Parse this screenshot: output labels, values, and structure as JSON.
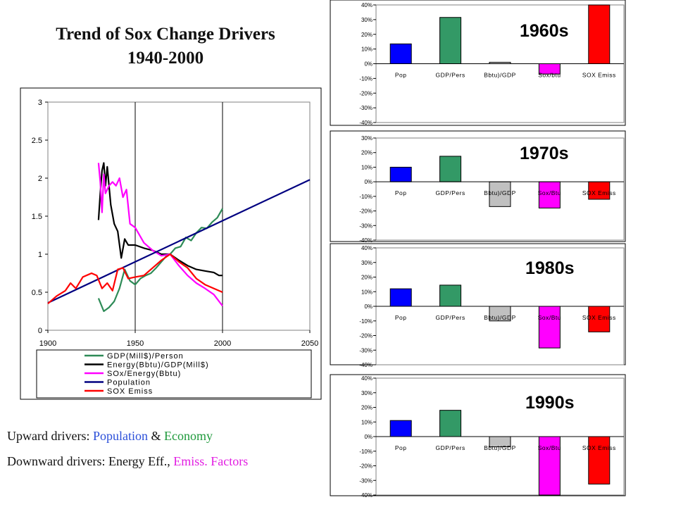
{
  "page": {
    "title_line1": "Trend of Sox Change Drivers",
    "title_line2": "1940-2000",
    "note1": {
      "prefix": "Upward drivers: ",
      "a": "Population",
      "mid": " & ",
      "b": "Economy"
    },
    "note2": {
      "prefix": "Downward drivers: Energy Eff., ",
      "a": "Emiss. Factors"
    }
  },
  "chart_data": [
    {
      "type": "line",
      "xlim": [
        1900,
        2050
      ],
      "ylim": [
        0,
        3
      ],
      "xticks": [
        "1900",
        "1950",
        "2000",
        "2050"
      ],
      "yticks": [
        "0",
        "0.5",
        "1",
        "1.5",
        "2",
        "2.5",
        "3"
      ],
      "vlines": [
        1950,
        2000
      ],
      "legend_position": "bottom",
      "series": [
        {
          "name": "GDP(Mill$)/Person",
          "color": "#2e8b57",
          "x": [
            1929,
            1932,
            1935,
            1938,
            1941,
            1944,
            1947,
            1950,
            1953,
            1956,
            1959,
            1962,
            1965,
            1968,
            1970,
            1973,
            1976,
            1979,
            1982,
            1985,
            1988,
            1991,
            1994,
            1997,
            2000
          ],
          "y": [
            0.42,
            0.25,
            0.3,
            0.38,
            0.55,
            0.8,
            0.65,
            0.6,
            0.68,
            0.72,
            0.75,
            0.82,
            0.9,
            0.98,
            1.0,
            1.08,
            1.1,
            1.22,
            1.18,
            1.28,
            1.35,
            1.34,
            1.42,
            1.48,
            1.6
          ]
        },
        {
          "name": "Energy(Bbtu)/GDP(Mill$)",
          "color": "#000000",
          "x": [
            1929,
            1930,
            1931,
            1932,
            1933,
            1934,
            1936,
            1938,
            1940,
            1942,
            1944,
            1946,
            1950,
            1955,
            1960,
            1965,
            1970,
            1975,
            1980,
            1985,
            1990,
            1995,
            1998,
            2000
          ],
          "y": [
            1.45,
            1.8,
            2.1,
            2.2,
            1.9,
            2.15,
            1.65,
            1.4,
            1.3,
            0.95,
            1.2,
            1.12,
            1.12,
            1.08,
            1.05,
            1.0,
            1.0,
            0.92,
            0.85,
            0.8,
            0.78,
            0.76,
            0.72,
            0.72
          ]
        },
        {
          "name": "SOx/Energy(Bbtu)",
          "color": "#ff00ff",
          "x": [
            1929,
            1930,
            1931,
            1932,
            1933,
            1935,
            1937,
            1939,
            1941,
            1943,
            1945,
            1947,
            1950,
            1955,
            1960,
            1965,
            1970,
            1975,
            1980,
            1985,
            1990,
            1995,
            2000
          ],
          "y": [
            2.2,
            1.95,
            1.55,
            2.05,
            1.8,
            1.9,
            1.95,
            1.9,
            2.0,
            1.75,
            1.85,
            1.4,
            1.35,
            1.15,
            1.05,
            0.98,
            1.0,
            0.85,
            0.72,
            0.62,
            0.55,
            0.47,
            0.32
          ]
        },
        {
          "name": "Population",
          "color": "#000080",
          "x": [
            1900,
            2050
          ],
          "y": [
            0.36,
            1.98
          ]
        },
        {
          "name": "SOX Emiss",
          "color": "#ff0000",
          "x": [
            1900,
            1905,
            1910,
            1913,
            1916,
            1920,
            1925,
            1928,
            1931,
            1934,
            1937,
            1940,
            1943,
            1946,
            1950,
            1955,
            1960,
            1965,
            1970,
            1975,
            1980,
            1985,
            1990,
            1995,
            2000
          ],
          "y": [
            0.35,
            0.45,
            0.52,
            0.62,
            0.55,
            0.7,
            0.75,
            0.72,
            0.55,
            0.62,
            0.52,
            0.8,
            0.82,
            0.68,
            0.7,
            0.72,
            0.82,
            0.92,
            1.0,
            0.9,
            0.82,
            0.68,
            0.6,
            0.55,
            0.5
          ]
        }
      ]
    },
    {
      "type": "bar",
      "title": "1960s",
      "categories": [
        "Pop",
        "GDP/Pers",
        "Bbtu)/GDP",
        "Sox/btu",
        "SOX Emiss"
      ],
      "values": [
        13.5,
        31.5,
        1,
        -7,
        40
      ],
      "colors": [
        "#0000ff",
        "#339966",
        "#c0c0c0",
        "#ff00ff",
        "#ff0000"
      ],
      "ylim": [
        -40,
        40
      ],
      "yticks": [
        "40%",
        "30%",
        "20%",
        "10%",
        "0%",
        "-10%",
        "-20%",
        "-30%",
        "-40%"
      ]
    },
    {
      "type": "bar",
      "title": "1970s",
      "categories": [
        "Pop",
        "GDP/Pers",
        "Bbtu)/GDP",
        "Sox/Btu",
        "SOX Emiss"
      ],
      "values": [
        10,
        17.5,
        -17,
        -18,
        -12
      ],
      "colors": [
        "#0000ff",
        "#339966",
        "#c0c0c0",
        "#ff00ff",
        "#ff0000"
      ],
      "ylim": [
        -40,
        30
      ],
      "yticks": [
        "30%",
        "20%",
        "10%",
        "0%",
        "-10%",
        "-20%",
        "-30%",
        "-40%"
      ]
    },
    {
      "type": "bar",
      "title": "1980s",
      "categories": [
        "Pop",
        "GDP/Pers",
        "Bbtu)/GDP",
        "Sox/Btu",
        "SOX Emiss"
      ],
      "values": [
        12,
        14.5,
        -10,
        -28.5,
        -17.5
      ],
      "colors": [
        "#0000ff",
        "#339966",
        "#c0c0c0",
        "#ff00ff",
        "#ff0000"
      ],
      "ylim": [
        -40,
        40
      ],
      "yticks": [
        "40%",
        "30%",
        "20%",
        "10%",
        "0%",
        "-10%",
        "-20%",
        "-30%",
        "-40%"
      ]
    },
    {
      "type": "bar",
      "title": "1990s",
      "categories": [
        "Pop",
        "GDP/Pers",
        "Bbtu)/GDP",
        "Sox/Btu",
        "SOX Emiss"
      ],
      "values": [
        11,
        18,
        -7,
        -40,
        -32.5
      ],
      "colors": [
        "#0000ff",
        "#339966",
        "#c0c0c0",
        "#ff00ff",
        "#ff0000"
      ],
      "ylim": [
        -40,
        40
      ],
      "yticks": [
        "40%",
        "30%",
        "20%",
        "10%",
        "0%",
        "-10%",
        "-20%",
        "-30%",
        "-40%"
      ]
    }
  ]
}
